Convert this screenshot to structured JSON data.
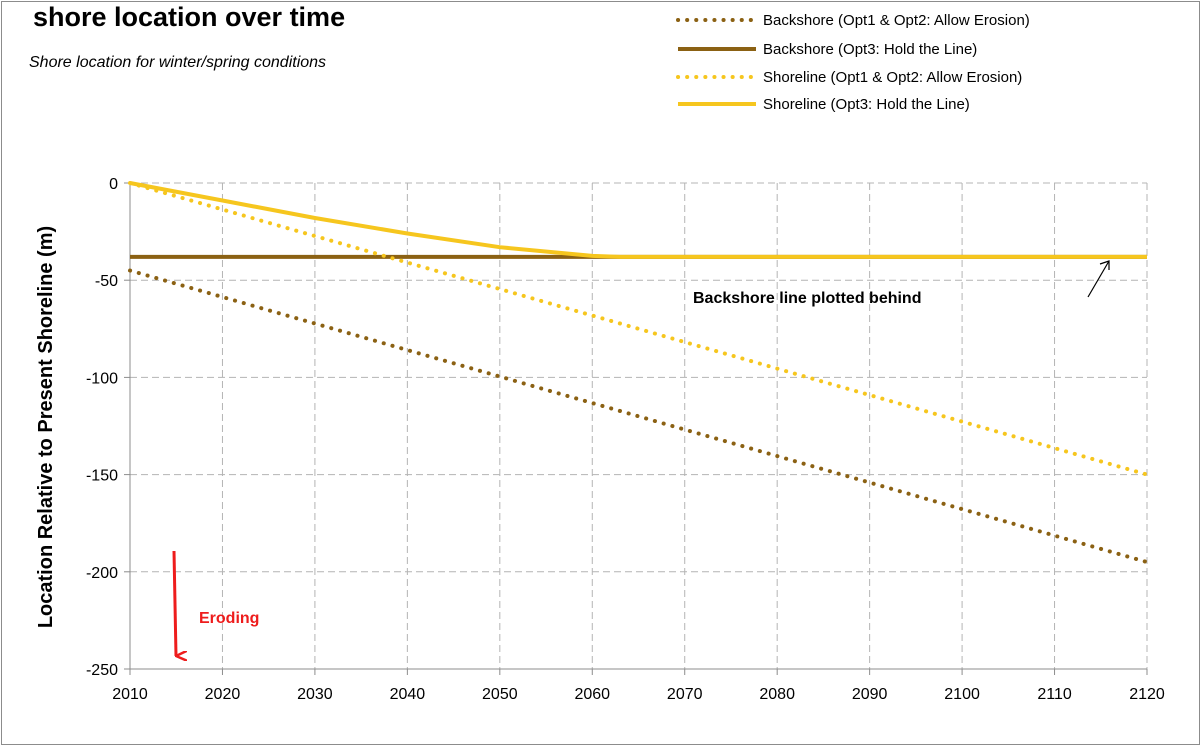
{
  "chart_data": {
    "type": "line",
    "title": "shore location over time",
    "subtitle": "Shore location for winter/spring conditions",
    "xlabel": "",
    "ylabel": "Location Relative to Present Shoreline (m)",
    "xlim": [
      2010,
      2120
    ],
    "ylim": [
      -250,
      0
    ],
    "xticks": [
      2010,
      2020,
      2030,
      2040,
      2050,
      2060,
      2070,
      2080,
      2090,
      2100,
      2110,
      2120
    ],
    "yticks": [
      0,
      -50,
      -100,
      -150,
      -200,
      -250
    ],
    "grid": true,
    "legend_position": "top-right",
    "series": [
      {
        "name": "Backshore (Opt1 & Opt2: Allow Erosion)",
        "color": "#8b6113",
        "style": "dotted",
        "x": [
          2010,
          2120
        ],
        "y": [
          -45,
          -195
        ]
      },
      {
        "name": "Backshore (Opt3: Hold the Line)",
        "color": "#8b6113",
        "style": "solid",
        "x": [
          2010,
          2120
        ],
        "y": [
          -38,
          -38
        ]
      },
      {
        "name": "Shoreline (Opt1 & Opt2: Allow Erosion)",
        "color": "#f6c61e",
        "style": "dotted",
        "x": [
          2010,
          2120
        ],
        "y": [
          0,
          -150
        ]
      },
      {
        "name": "Shoreline (Opt3: Hold the Line)",
        "color": "#f6c61e",
        "style": "solid",
        "x": [
          2010,
          2020,
          2030,
          2040,
          2050,
          2060,
          2063,
          2070,
          2120
        ],
        "y": [
          0,
          -9,
          -18,
          -26,
          -33,
          -37.5,
          -38,
          -38,
          -38
        ]
      }
    ],
    "annotations": {
      "behind_note": "Backshore line plotted behind",
      "eroding_label": "Eroding"
    }
  }
}
